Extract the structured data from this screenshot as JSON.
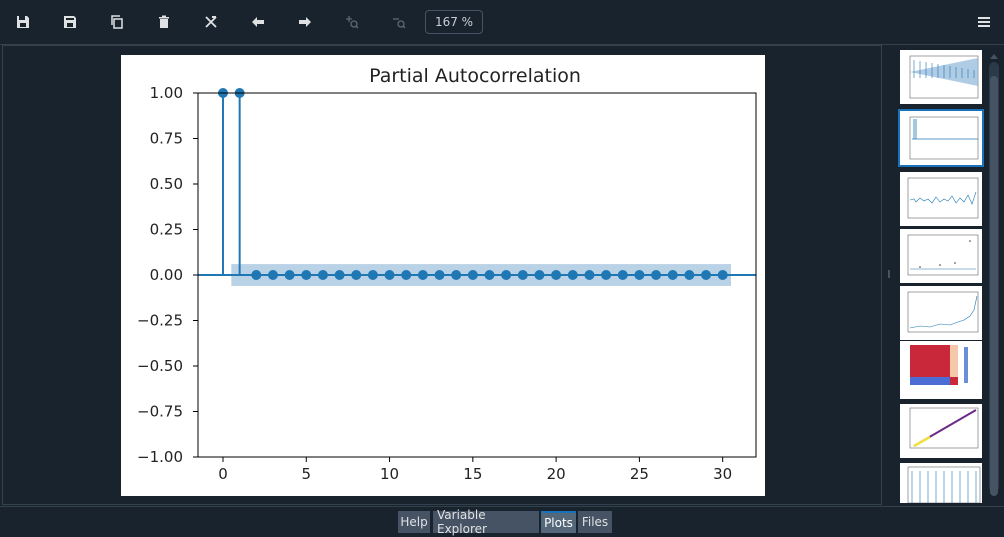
{
  "toolbar": {
    "buttons": [
      {
        "name": "save-icon"
      },
      {
        "name": "save-all-icon"
      },
      {
        "name": "copy-icon"
      },
      {
        "name": "delete-icon"
      },
      {
        "name": "delete-all-icon"
      },
      {
        "name": "previous-arrow-icon"
      },
      {
        "name": "next-arrow-icon"
      },
      {
        "name": "zoom-in-icon"
      },
      {
        "name": "zoom-out-icon"
      }
    ],
    "zoom_value": "167 %",
    "menu_icon": "hamburger-menu-icon"
  },
  "chart_data": {
    "type": "line",
    "title": "Partial Autocorrelation",
    "xlabel": "",
    "ylabel": "",
    "xlim": [
      -1.5,
      32
    ],
    "ylim": [
      -1.0,
      1.0
    ],
    "xticks": [
      "0",
      "5",
      "10",
      "15",
      "20",
      "25",
      "30"
    ],
    "yticks": [
      "1.00",
      "0.75",
      "0.50",
      "0.25",
      "0.00",
      "−0.25",
      "−0.50",
      "−0.75",
      "−1.00"
    ],
    "x": [
      0,
      1,
      2,
      3,
      4,
      5,
      6,
      7,
      8,
      9,
      10,
      11,
      12,
      13,
      14,
      15,
      16,
      17,
      18,
      19,
      20,
      21,
      22,
      23,
      24,
      25,
      26,
      27,
      28,
      29,
      30
    ],
    "values": [
      1.0,
      1.0,
      0,
      0,
      0,
      0,
      0,
      0,
      0,
      0,
      0,
      0,
      0,
      0,
      0,
      0,
      0,
      0,
      0,
      0,
      0,
      0,
      0,
      0,
      0,
      0,
      0,
      0,
      0,
      0,
      0
    ],
    "confidence_band": [
      -0.06,
      0.06
    ],
    "grid": false,
    "colors": {
      "stem": "#1f77b4",
      "band": "#b3cde3"
    }
  },
  "tabs": [
    {
      "label": "Help"
    },
    {
      "label": "Variable Explorer"
    },
    {
      "label": "Plots"
    },
    {
      "label": "Files"
    }
  ],
  "colors": {
    "accent": "#1a72bb",
    "background": "#19232d"
  }
}
